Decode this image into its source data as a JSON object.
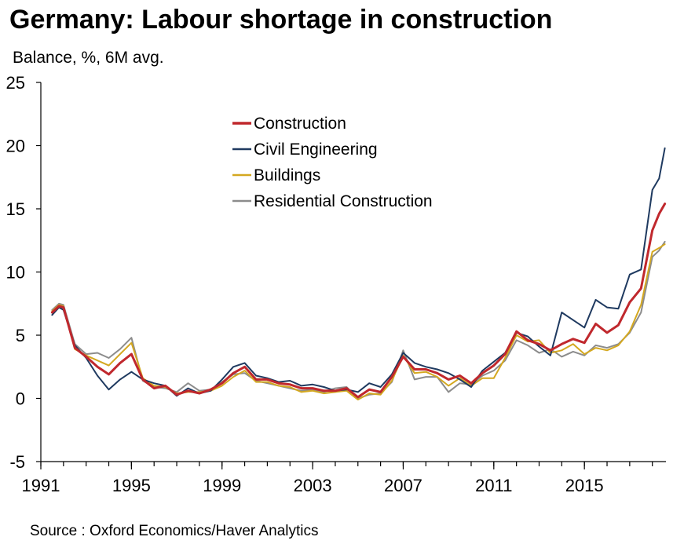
{
  "title": "Germany: Labour shortage in construction",
  "unit_label": "Balance, %, 6M avg.",
  "source": "Source : Oxford Economics/Haver Analytics",
  "colors": {
    "construction": "#c0282d",
    "civil": "#1f3a60",
    "buildings": "#d4a820",
    "residential": "#8c8c8c",
    "axis": "#000000"
  },
  "chart_data": {
    "type": "line",
    "title": "Germany: Labour shortage in construction",
    "ylabel": "Balance, %, 6M avg.",
    "xlabel": "",
    "xlim": [
      1991.0,
      2018.6
    ],
    "ylim": [
      -5,
      25
    ],
    "yticks": [
      -5,
      0,
      5,
      10,
      15,
      20,
      25
    ],
    "xticks": [
      1991,
      1995,
      1999,
      2003,
      2007,
      2011,
      2015
    ],
    "grid": false,
    "legend_position": "top-center",
    "series": [
      {
        "name": "Construction",
        "color": "#c0282d",
        "x": [
          1991.5,
          1991.8,
          1992.0,
          1992.5,
          1993.0,
          1993.5,
          1994.0,
          1994.5,
          1995.0,
          1995.5,
          1996.0,
          1996.5,
          1997.0,
          1997.5,
          1998.0,
          1998.5,
          1999.0,
          1999.5,
          2000.0,
          2000.5,
          2001.0,
          2001.5,
          2002.0,
          2002.5,
          2003.0,
          2003.5,
          2004.0,
          2004.5,
          2005.0,
          2005.5,
          2006.0,
          2006.5,
          2007.0,
          2007.5,
          2008.0,
          2008.5,
          2009.0,
          2009.5,
          2010.0,
          2010.5,
          2011.0,
          2011.5,
          2012.0,
          2012.5,
          2013.0,
          2013.5,
          2014.0,
          2014.5,
          2015.0,
          2015.5,
          2016.0,
          2016.5,
          2017.0,
          2017.5,
          2018.0,
          2018.3,
          2018.55
        ],
        "values": [
          6.8,
          7.3,
          7.2,
          4.0,
          3.3,
          2.5,
          1.9,
          2.8,
          3.5,
          1.5,
          0.8,
          1.0,
          0.3,
          0.6,
          0.4,
          0.7,
          1.2,
          2.0,
          2.5,
          1.5,
          1.5,
          1.2,
          1.1,
          0.8,
          0.8,
          0.6,
          0.6,
          0.8,
          0.1,
          0.7,
          0.5,
          1.7,
          3.3,
          2.3,
          2.3,
          2.0,
          1.5,
          1.8,
          1.2,
          2.0,
          2.6,
          3.5,
          5.3,
          4.6,
          4.3,
          3.8,
          4.3,
          4.7,
          4.4,
          5.9,
          5.2,
          5.8,
          7.6,
          8.7,
          13.3,
          14.6,
          15.4
        ]
      },
      {
        "name": "Civil Engineering",
        "color": "#1f3a60",
        "x": [
          1991.5,
          1991.8,
          1992.0,
          1992.5,
          1993.0,
          1993.5,
          1994.0,
          1994.5,
          1995.0,
          1995.5,
          1996.0,
          1996.5,
          1997.0,
          1997.5,
          1998.0,
          1998.5,
          1999.0,
          1999.5,
          2000.0,
          2000.5,
          2001.0,
          2001.5,
          2002.0,
          2002.5,
          2003.0,
          2003.5,
          2004.0,
          2004.5,
          2005.0,
          2005.5,
          2006.0,
          2006.5,
          2007.0,
          2007.5,
          2008.0,
          2008.5,
          2009.0,
          2009.5,
          2010.0,
          2010.5,
          2011.0,
          2011.5,
          2012.0,
          2012.5,
          2013.0,
          2013.5,
          2014.0,
          2014.5,
          2015.0,
          2015.5,
          2016.0,
          2016.5,
          2017.0,
          2017.5,
          2018.0,
          2018.3,
          2018.55
        ],
        "values": [
          6.6,
          7.2,
          7.0,
          4.2,
          3.2,
          1.8,
          0.7,
          1.5,
          2.1,
          1.5,
          1.2,
          1.0,
          0.2,
          0.8,
          0.4,
          0.6,
          1.5,
          2.5,
          2.8,
          1.8,
          1.6,
          1.3,
          1.4,
          1.0,
          1.1,
          0.9,
          0.6,
          0.7,
          0.5,
          1.2,
          0.9,
          1.9,
          3.6,
          2.8,
          2.5,
          2.3,
          2.0,
          1.5,
          0.9,
          2.2,
          2.9,
          3.6,
          5.2,
          4.9,
          4.1,
          3.4,
          6.8,
          6.2,
          5.6,
          7.8,
          7.2,
          7.1,
          9.8,
          10.2,
          16.5,
          17.4,
          19.8
        ]
      },
      {
        "name": "Buildings",
        "color": "#d4a820",
        "x": [
          1991.5,
          1991.8,
          1992.0,
          1992.5,
          1993.0,
          1993.5,
          1994.0,
          1994.5,
          1995.0,
          1995.5,
          1996.0,
          1996.5,
          1997.0,
          1997.5,
          1998.0,
          1998.5,
          1999.0,
          1999.5,
          2000.0,
          2000.5,
          2001.0,
          2001.5,
          2002.0,
          2002.5,
          2003.0,
          2003.5,
          2004.0,
          2004.5,
          2005.0,
          2005.5,
          2006.0,
          2006.5,
          2007.0,
          2007.5,
          2008.0,
          2008.5,
          2009.0,
          2009.5,
          2010.0,
          2010.5,
          2011.0,
          2011.5,
          2012.0,
          2012.5,
          2013.0,
          2013.5,
          2014.0,
          2014.5,
          2015.0,
          2015.5,
          2016.0,
          2016.5,
          2017.0,
          2017.5,
          2018.0,
          2018.3,
          2018.55
        ],
        "values": [
          6.9,
          7.4,
          7.3,
          3.9,
          3.4,
          3.0,
          2.6,
          3.5,
          4.4,
          1.6,
          1.0,
          0.9,
          0.4,
          0.5,
          0.5,
          0.6,
          1.0,
          1.7,
          2.2,
          1.3,
          1.3,
          1.0,
          0.9,
          0.5,
          0.6,
          0.4,
          0.5,
          0.6,
          -0.1,
          0.4,
          0.3,
          1.4,
          3.4,
          2.0,
          2.1,
          1.7,
          1.0,
          1.6,
          1.0,
          1.6,
          1.6,
          3.2,
          5.0,
          4.5,
          4.6,
          3.6,
          3.8,
          4.3,
          3.5,
          4.0,
          3.8,
          4.2,
          5.3,
          7.4,
          11.6,
          11.9,
          12.2
        ]
      },
      {
        "name": "Residential Construction",
        "color": "#8c8c8c",
        "x": [
          1991.5,
          1991.8,
          1992.0,
          1992.5,
          1993.0,
          1993.5,
          1994.0,
          1994.5,
          1995.0,
          1995.5,
          1996.0,
          1996.5,
          1997.0,
          1997.5,
          1998.0,
          1998.5,
          1999.0,
          1999.5,
          2000.0,
          2000.5,
          2001.0,
          2001.5,
          2002.0,
          2002.5,
          2003.0,
          2003.5,
          2004.0,
          2004.5,
          2005.0,
          2005.5,
          2006.0,
          2006.5,
          2007.0,
          2007.5,
          2008.0,
          2008.5,
          2009.0,
          2009.5,
          2010.0,
          2010.5,
          2011.0,
          2011.5,
          2012.0,
          2012.5,
          2013.0,
          2013.5,
          2014.0,
          2014.5,
          2015.0,
          2015.5,
          2016.0,
          2016.5,
          2017.0,
          2017.5,
          2018.0,
          2018.3,
          2018.55
        ],
        "values": [
          7.0,
          7.5,
          7.4,
          4.3,
          3.5,
          3.6,
          3.2,
          3.9,
          4.8,
          1.4,
          0.9,
          0.8,
          0.5,
          1.2,
          0.6,
          0.7,
          1.3,
          1.9,
          2.0,
          1.4,
          1.2,
          1.0,
          0.8,
          0.6,
          0.7,
          0.5,
          0.8,
          0.9,
          0.0,
          0.3,
          0.4,
          1.3,
          3.8,
          1.5,
          1.7,
          1.7,
          0.5,
          1.2,
          1.1,
          1.8,
          2.2,
          3.0,
          4.6,
          4.2,
          3.6,
          3.9,
          3.3,
          3.7,
          3.4,
          4.2,
          4.0,
          4.3,
          5.2,
          6.8,
          11.2,
          11.7,
          12.4
        ]
      }
    ]
  }
}
